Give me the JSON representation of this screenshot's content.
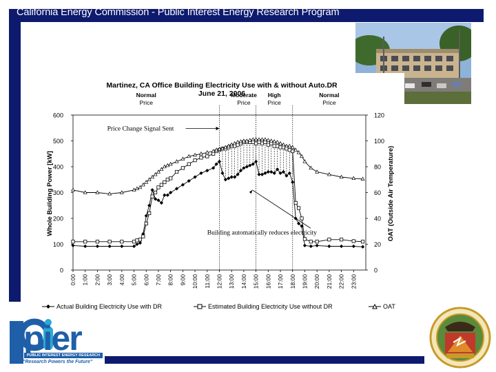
{
  "header": {
    "title": "California Energy Commission - Public Interest Energy Research Program"
  },
  "logo": {
    "name": "pier",
    "subtitle": "PUBLIC INTEREST ENERGY RESEARCH",
    "tagline": "\"Research Powers the Future\""
  },
  "colors": {
    "frame": "#0d1a6e",
    "pier_blue": "#1f5fa8",
    "pier_cyan": "#2aa9d8",
    "seal_gold": "#c89a2a",
    "seal_red": "#c0392b"
  },
  "chart_data": {
    "type": "line",
    "title": "Martinez, CA Office Building Electricity Use with & without Auto.DR",
    "subtitle": "June 21, 2006",
    "ylabel": "Whole Building Power [kW]",
    "y2label": "OAT (Outside Air Temperature)",
    "ylim": [
      0,
      600
    ],
    "y2lim": [
      0,
      120
    ],
    "yticks": [
      0,
      100,
      200,
      300,
      400,
      500,
      600
    ],
    "y2ticks": [
      0,
      20,
      40,
      60,
      80,
      100,
      120
    ],
    "xticks": [
      "0:00",
      "1:00",
      "2:00",
      "3:00",
      "4:00",
      "5:00",
      "6:00",
      "7:00",
      "8:00",
      "9:00",
      "10:00",
      "11:00",
      "12:00",
      "13:00",
      "14:00",
      "15:00",
      "16:00",
      "17:00",
      "18:00",
      "19:00",
      "20:00",
      "21:00",
      "22:00",
      "23:00"
    ],
    "x_hours": [
      0,
      1,
      2,
      3,
      4,
      5,
      5.25,
      5.5,
      5.75,
      6,
      6.25,
      6.5,
      6.75,
      7,
      7.25,
      7.5,
      7.75,
      8,
      8.5,
      9,
      9.5,
      10,
      10.5,
      11,
      11.5,
      11.75,
      12,
      12.25,
      12.5,
      12.75,
      13,
      13.25,
      13.5,
      13.75,
      14,
      14.25,
      14.5,
      14.75,
      15,
      15.25,
      15.5,
      15.75,
      16,
      16.25,
      16.5,
      16.75,
      17,
      17.25,
      17.5,
      17.75,
      18,
      18.25,
      18.5,
      18.75,
      19,
      19.5,
      20,
      21,
      22,
      23,
      23.75
    ],
    "price_periods": [
      {
        "label1": "Normal",
        "label2": "Price",
        "hour": 6
      },
      {
        "label1": "Moderate",
        "label2": "Price",
        "hour": 14
      },
      {
        "label1": "High",
        "label2": "Price",
        "hour": 16.5
      },
      {
        "label1": "Normal",
        "label2": "Price",
        "hour": 21
      }
    ],
    "period_boundaries": [
      12,
      15,
      18
    ],
    "annotations": [
      {
        "text": "Price Change Signal Sent",
        "hour": 2.8,
        "value": 540,
        "arrow_to_hour": 12,
        "arrow_to_value": 540
      },
      {
        "text": "Building automatically reduces electricity",
        "hour": 11,
        "value": 138,
        "arrow_to_hour": 14.7,
        "arrow_to_value": 310
      }
    ],
    "series": [
      {
        "name": "Actual Building Electricity Use with DR",
        "marker": "diamond",
        "axis": "left",
        "values": [
          95,
          92,
          92,
          92,
          92,
          92,
          100,
          105,
          140,
          210,
          250,
          310,
          275,
          270,
          260,
          290,
          290,
          300,
          315,
          330,
          345,
          360,
          375,
          385,
          395,
          410,
          420,
          375,
          350,
          355,
          360,
          360,
          370,
          385,
          395,
          400,
          405,
          410,
          420,
          370,
          370,
          375,
          380,
          380,
          375,
          390,
          375,
          380,
          365,
          375,
          340,
          200,
          180,
          170,
          95,
          92,
          95,
          92,
          92,
          92,
          90
        ]
      },
      {
        "name": "Estimated Building Electricity Use without DR",
        "marker": "square",
        "axis": "left",
        "values": [
          110,
          110,
          110,
          110,
          110,
          110,
          115,
          118,
          130,
          180,
          220,
          285,
          300,
          320,
          330,
          340,
          350,
          355,
          380,
          395,
          410,
          425,
          435,
          440,
          450,
          460,
          465,
          470,
          470,
          475,
          480,
          480,
          485,
          490,
          495,
          495,
          495,
          495,
          490,
          495,
          490,
          495,
          485,
          490,
          480,
          480,
          475,
          475,
          470,
          465,
          460,
          260,
          240,
          200,
          120,
          110,
          110,
          118,
          118,
          112,
          110
        ]
      },
      {
        "name": "OAT",
        "marker": "triangle",
        "axis": "right",
        "values": [
          62,
          60,
          60,
          59,
          60,
          62,
          63,
          64,
          66,
          68,
          70,
          72,
          74,
          76,
          78,
          80,
          81,
          82,
          84,
          86,
          88,
          89,
          90,
          91,
          92,
          93,
          93.5,
          94,
          95,
          96,
          97,
          98,
          99,
          99.5,
          100,
          100,
          100.5,
          101,
          101,
          101,
          101,
          101,
          100.5,
          100,
          99.5,
          99,
          98,
          97,
          96,
          96,
          95,
          93,
          91,
          88,
          84,
          79,
          76,
          74,
          72,
          71,
          70.5
        ]
      }
    ]
  }
}
